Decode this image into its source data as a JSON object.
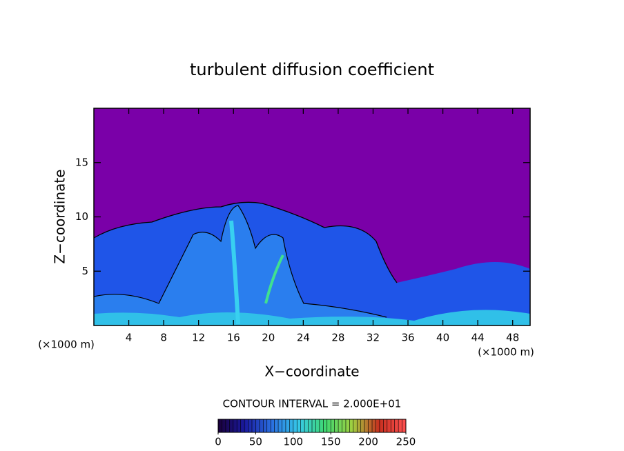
{
  "chart_data": {
    "type": "contour",
    "title": "turbulent diffusion coefficient",
    "xlabel": "X−coordinate",
    "ylabel": "Z−coordinate",
    "x_unit_labels": [
      "(×1000 m)",
      "(×1000 m)"
    ],
    "xlim": [
      0,
      50
    ],
    "xticks": [
      4,
      8,
      12,
      16,
      20,
      24,
      28,
      32,
      36,
      40,
      44,
      48
    ],
    "ylim": [
      0,
      20
    ],
    "yticks": [
      5,
      10,
      15
    ],
    "contour_interval_label": "CONTOUR INTERVAL = 2.000E+01",
    "colorbar_lim": [
      0,
      250
    ],
    "colorbar_ticks": [
      0,
      50,
      100,
      150,
      200,
      250
    ],
    "colorbar_colors": [
      "#1a003a",
      "#1a1aa0",
      "#2a6fe0",
      "#36c8e8",
      "#40d870",
      "#a0d040",
      "#c83020",
      "#ff5050"
    ],
    "background_color": "#7a00a8"
  }
}
